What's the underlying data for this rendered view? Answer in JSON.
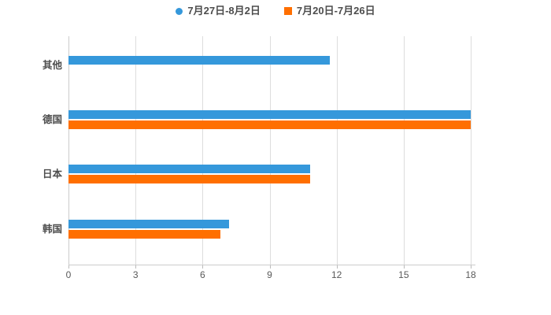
{
  "chart_data": {
    "type": "bar",
    "orientation": "horizontal",
    "title": "",
    "xlabel": "",
    "ylabel": "",
    "categories": [
      "其他",
      "德国",
      "日本",
      "韩国"
    ],
    "series": [
      {
        "name": "7月27日-8月2日",
        "marker": "circle",
        "color": "#3598db",
        "values": [
          11.7,
          18,
          10.8,
          7.2
        ]
      },
      {
        "name": "7月20日-7月26日",
        "marker": "square",
        "color": "#ff6f00",
        "values": [
          0,
          18,
          10.8,
          6.8
        ]
      }
    ],
    "x_ticks": [
      "0",
      "3",
      "6",
      "9",
      "12",
      "15",
      "18"
    ],
    "x_tick_values": [
      0,
      3,
      6,
      9,
      12,
      15,
      18
    ],
    "xlim": [
      0,
      18
    ],
    "grid": true,
    "legend_position": "top",
    "colors": {
      "background": "#ffffff",
      "grid_line": "#dddddd",
      "axis_line": "#cccccc",
      "tick_label": "#595959",
      "category_label": "#4d4d4d",
      "legend_text": "#4d4d4d"
    }
  }
}
